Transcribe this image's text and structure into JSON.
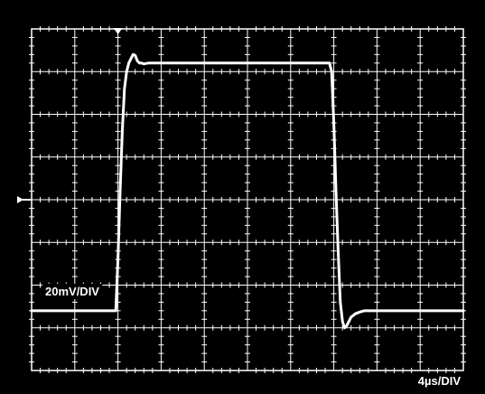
{
  "chart_data": {
    "type": "line",
    "divisions": {
      "x": 10,
      "y": 8
    },
    "grid": true,
    "colors": {
      "background": "#000000",
      "grid": "#ffffff",
      "trace": "#ffffff"
    },
    "labels": {
      "vertical_scale": "20mV/DIV",
      "horizontal_scale": "4µs/DIV"
    },
    "trigger_marker_div": 2.0,
    "ground_marker_div": 4.0,
    "trace": {
      "x_div": [
        0.0,
        1.95,
        2.0,
        2.05,
        2.1,
        2.15,
        2.2,
        2.25,
        2.3,
        2.35,
        2.4,
        2.45,
        2.5,
        2.55,
        2.6,
        2.7,
        2.8,
        3.0,
        5.0,
        6.0,
        6.9,
        6.95,
        7.0,
        7.05,
        7.1,
        7.15,
        7.2,
        7.25,
        7.3,
        7.35,
        7.4,
        7.5,
        7.6,
        7.7,
        7.8,
        8.0,
        10.0
      ],
      "y_div": [
        1.4,
        1.4,
        2.6,
        4.2,
        5.6,
        6.6,
        7.0,
        7.2,
        7.3,
        7.4,
        7.38,
        7.25,
        7.2,
        7.2,
        7.18,
        7.2,
        7.2,
        7.2,
        7.2,
        7.2,
        7.2,
        7.0,
        5.8,
        4.2,
        2.8,
        1.6,
        1.15,
        1.0,
        1.05,
        1.15,
        1.25,
        1.33,
        1.37,
        1.4,
        1.4,
        1.4,
        1.4
      ]
    }
  }
}
